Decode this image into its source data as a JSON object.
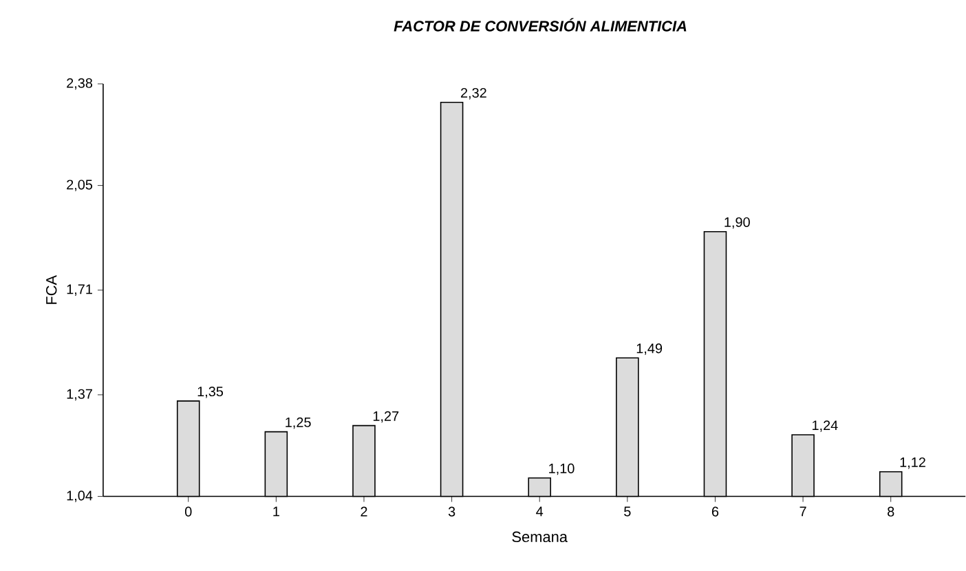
{
  "chart_data": {
    "type": "bar",
    "title": "FACTOR DE CONVERSIÓN ALIMENTICIA",
    "xlabel": "Semana",
    "ylabel": "FCA",
    "categories": [
      "0",
      "1",
      "2",
      "3",
      "4",
      "5",
      "6",
      "7",
      "8"
    ],
    "values": [
      1.35,
      1.25,
      1.27,
      2.32,
      1.1,
      1.49,
      1.9,
      1.24,
      1.12
    ],
    "value_labels": [
      "1,35",
      "1,25",
      "1,27",
      "2,32",
      "1,10",
      "1,49",
      "1,90",
      "1,24",
      "1,12"
    ],
    "color": "#dcdcdc",
    "ylim": [
      1.04,
      2.38
    ],
    "yticks": [
      {
        "value": 1.04,
        "label": "1,04"
      },
      {
        "value": 1.37,
        "label": "1,37"
      },
      {
        "value": 1.71,
        "label": "1,71"
      },
      {
        "value": 2.05,
        "label": "2,05"
      },
      {
        "value": 2.38,
        "label": "2,38"
      }
    ],
    "grid": false
  }
}
